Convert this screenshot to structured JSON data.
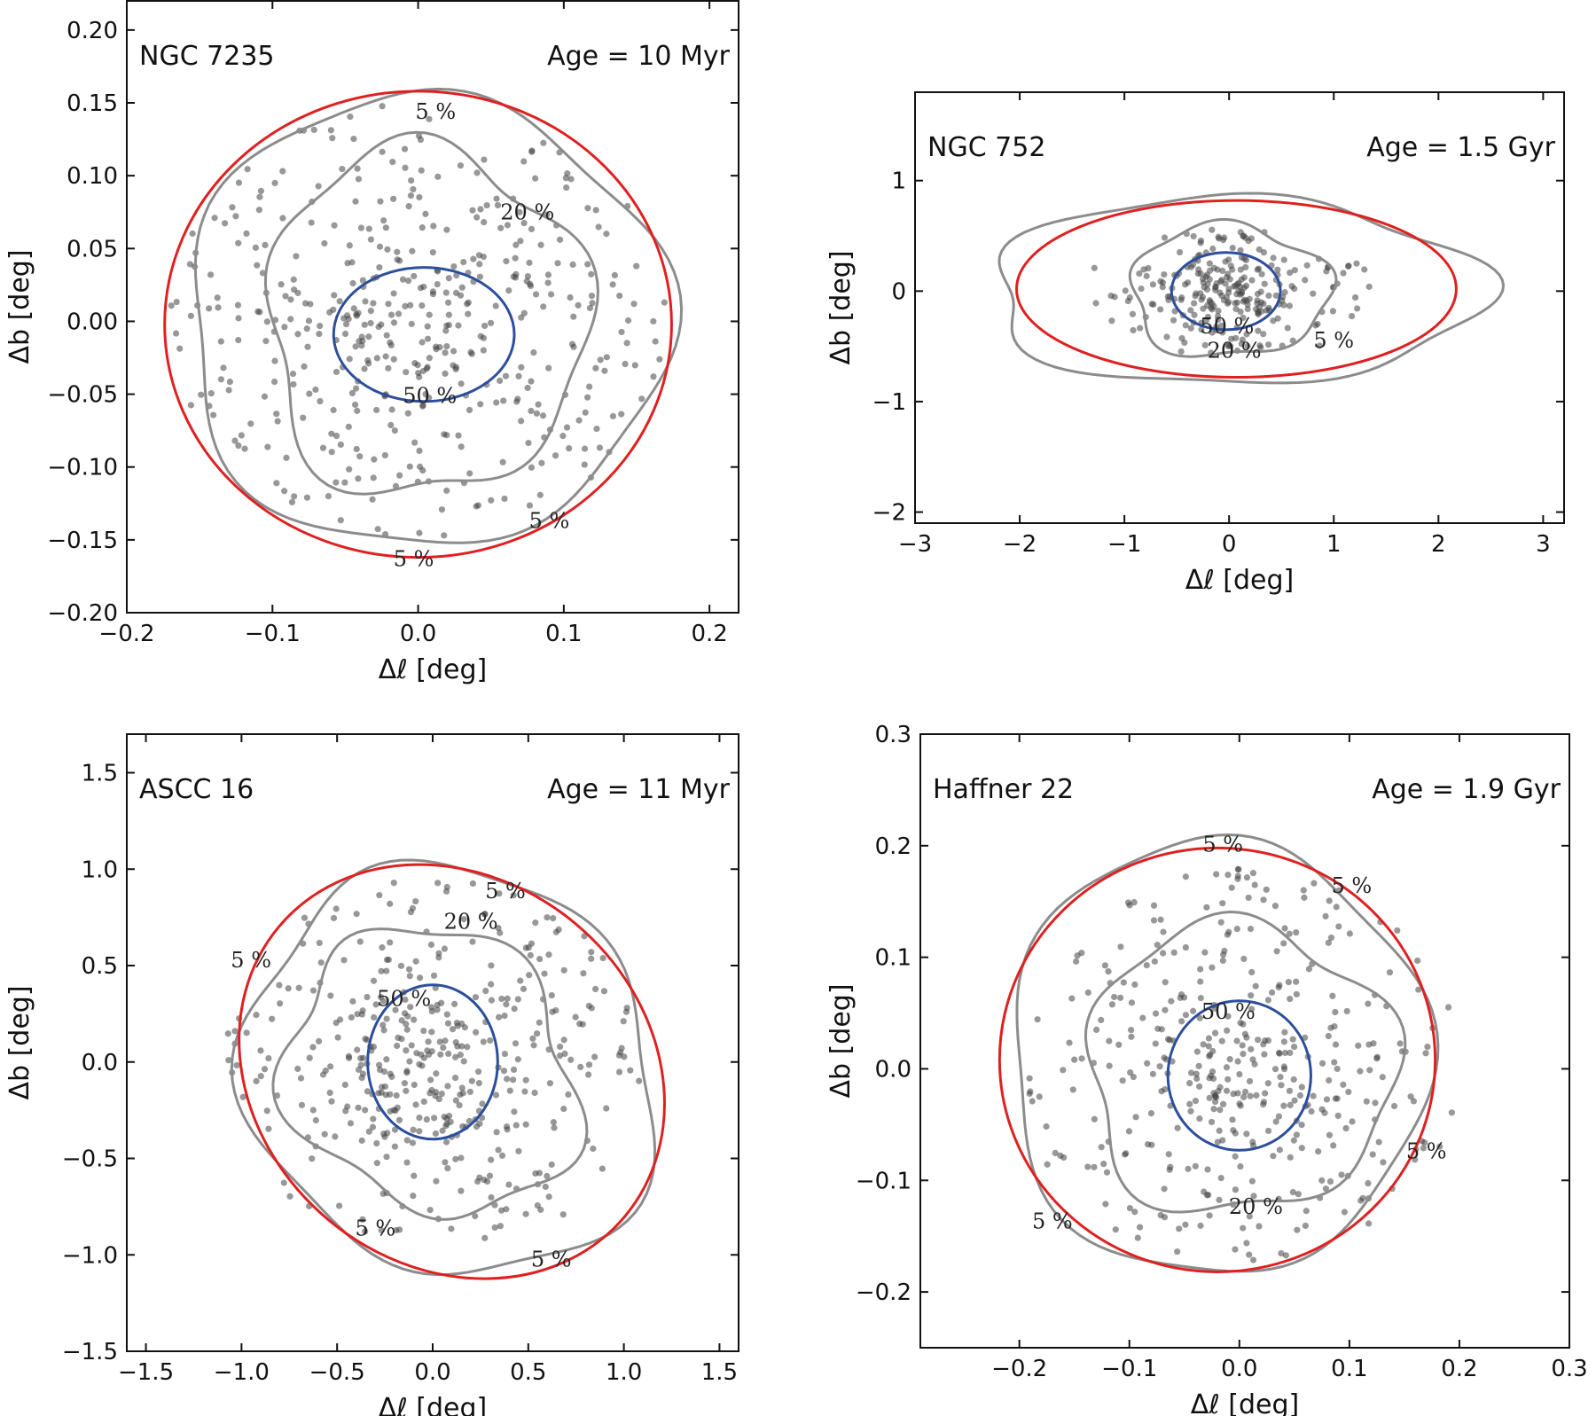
{
  "chart_data": [
    {
      "type": "scatter",
      "title": "NGC 7235",
      "age_label": "Age = 10 Myr",
      "xlabel": "Δℓ [deg]",
      "ylabel": "Δb [deg]",
      "xlim": [
        -0.2,
        0.22
      ],
      "ylim": [
        -0.2,
        0.22
      ],
      "xticks": [
        -0.2,
        -0.1,
        0.0,
        0.1,
        0.2
      ],
      "xtick_labels": [
        "−0.2",
        "−0.1",
        "0.0",
        "0.1",
        "0.2"
      ],
      "yticks": [
        -0.2,
        -0.15,
        -0.1,
        -0.05,
        0.0,
        0.05,
        0.1,
        0.15,
        0.2
      ],
      "ytick_labels": [
        "−0.20",
        "−0.15",
        "−0.10",
        "−0.05",
        "0.00",
        "0.05",
        "0.10",
        "0.15",
        "0.20"
      ],
      "scatter": {
        "n": 460,
        "seed": 11,
        "center": [
          0.0,
          0.0
        ],
        "core": [
          0.045,
          0.035
        ],
        "halo": [
          0.17,
          0.15
        ],
        "core_frac": 0.35
      },
      "ellipses": [
        {
          "name": "fit-red",
          "color": "#e02020",
          "cx": 0.0,
          "cy": -0.002,
          "rx": 0.174,
          "ry": 0.16
        },
        {
          "name": "core-blue",
          "color": "#2d4e9c",
          "cx": 0.004,
          "cy": -0.009,
          "rx": 0.062,
          "ry": 0.046
        }
      ],
      "contours": [
        {
          "level": "20 %",
          "cx": 0.005,
          "cy": 0.0,
          "rx": 0.11,
          "ry": 0.12,
          "wobble": 0.12
        },
        {
          "level": "5 %",
          "cx": 0.005,
          "cy": 0.0,
          "rx": 0.165,
          "ry": 0.155,
          "wobble": 0.07
        }
      ],
      "contour_labels": [
        {
          "text": "5 %",
          "x": 0.012,
          "y": 0.143
        },
        {
          "text": "20 %",
          "x": 0.075,
          "y": 0.074
        },
        {
          "text": "50 %",
          "x": 0.008,
          "y": -0.052
        },
        {
          "text": "5 %",
          "x": 0.09,
          "y": -0.138
        },
        {
          "text": "5 %",
          "x": -0.003,
          "y": -0.164
        }
      ]
    },
    {
      "type": "scatter",
      "title": "NGC 752",
      "age_label": "Age = 1.5 Gyr",
      "xlabel": "Δℓ [deg]",
      "ylabel": "Δb [deg]",
      "xlim": [
        -3.0,
        3.2
      ],
      "ylim": [
        -2.1,
        1.8
      ],
      "xticks": [
        -3,
        -2,
        -1,
        0,
        1,
        2,
        3
      ],
      "xtick_labels": [
        "−3",
        "−2",
        "−1",
        "0",
        "1",
        "2",
        "3"
      ],
      "yticks": [
        -2,
        -1,
        0,
        1
      ],
      "ytick_labels": [
        "−2",
        "−1",
        "0",
        "1"
      ],
      "scatter": {
        "n": 260,
        "seed": 23,
        "center": [
          0.0,
          0.0
        ],
        "core": [
          0.35,
          0.22
        ],
        "halo": [
          1.4,
          0.55
        ],
        "core_frac": 0.55
      },
      "ellipses": [
        {
          "name": "fit-red",
          "color": "#e02020",
          "cx": 0.07,
          "cy": 0.02,
          "rx": 2.1,
          "ry": 0.8
        },
        {
          "name": "core-blue",
          "color": "#2d4e9c",
          "cx": -0.03,
          "cy": 0.0,
          "rx": 0.52,
          "ry": 0.35
        }
      ],
      "contours": [
        {
          "level": "20 %",
          "cx": 0.0,
          "cy": 0.0,
          "rx": 0.95,
          "ry": 0.6,
          "wobble": 0.12
        },
        {
          "level": "5 %",
          "cx": 0.05,
          "cy": 0.0,
          "rx": 2.35,
          "ry": 0.85,
          "wobble": 0.1
        }
      ],
      "contour_labels": [
        {
          "text": "50 %",
          "x": -0.02,
          "y": -0.33
        },
        {
          "text": "20 %",
          "x": 0.05,
          "y": -0.55
        },
        {
          "text": "5 %",
          "x": 1.0,
          "y": -0.46
        }
      ]
    },
    {
      "type": "scatter",
      "title": "ASCC 16",
      "age_label": "Age = 11 Myr",
      "xlabel": "Δℓ [deg]",
      "ylabel": "Δb [deg]",
      "xlim": [
        -1.6,
        1.6
      ],
      "ylim": [
        -1.5,
        1.7
      ],
      "xticks": [
        -1.5,
        -1.0,
        -0.5,
        0.0,
        0.5,
        1.0,
        1.5
      ],
      "xtick_labels": [
        "−1.5",
        "−1.0",
        "−0.5",
        "0.0",
        "0.5",
        "1.0",
        "1.5"
      ],
      "yticks": [
        -1.5,
        -1.0,
        -0.5,
        0.0,
        0.5,
        1.0,
        1.5
      ],
      "ytick_labels": [
        "−1.5",
        "−1.0",
        "−0.5",
        "0.0",
        "0.5",
        "1.0",
        "1.5"
      ],
      "scatter": {
        "n": 420,
        "seed": 37,
        "center": [
          0.0,
          0.0
        ],
        "core": [
          0.3,
          0.3
        ],
        "halo": [
          1.1,
          0.95
        ],
        "core_frac": 0.4
      },
      "ellipses": [
        {
          "name": "fit-red",
          "color": "#e02020",
          "cx": 0.1,
          "cy": -0.05,
          "rx": 1.18,
          "ry": 1.0,
          "angle": -40
        },
        {
          "name": "core-blue",
          "color": "#2d4e9c",
          "cx": 0.0,
          "cy": 0.0,
          "rx": 0.34,
          "ry": 0.4
        }
      ],
      "contours": [
        {
          "level": "20 %",
          "cx": 0.0,
          "cy": -0.05,
          "rx": 0.8,
          "ry": 0.7,
          "wobble": 0.14,
          "angle": -40
        },
        {
          "level": "5 %",
          "cx": 0.1,
          "cy": -0.05,
          "rx": 1.12,
          "ry": 1.02,
          "wobble": 0.08,
          "angle": -40
        }
      ],
      "contour_labels": [
        {
          "text": "5 %",
          "x": 0.38,
          "y": 0.88
        },
        {
          "text": "20 %",
          "x": 0.2,
          "y": 0.72
        },
        {
          "text": "5 %",
          "x": -0.95,
          "y": 0.52
        },
        {
          "text": "50 %",
          "x": -0.15,
          "y": 0.32
        },
        {
          "text": "5 %",
          "x": -0.3,
          "y": -0.87
        },
        {
          "text": "5 %",
          "x": 0.62,
          "y": -1.03
        }
      ]
    },
    {
      "type": "scatter",
      "title": "Haffner 22",
      "age_label": "Age = 1.9 Gyr",
      "xlabel": "Δℓ [deg]",
      "ylabel": "Δb [deg]",
      "xlim": [
        -0.29,
        0.3
      ],
      "ylim": [
        -0.25,
        0.3
      ],
      "xticks": [
        -0.2,
        -0.1,
        0.0,
        0.1,
        0.2,
        0.3
      ],
      "xtick_labels": [
        "−0.2",
        "−0.1",
        "0.0",
        "0.1",
        "0.2",
        "0.3"
      ],
      "yticks": [
        -0.2,
        -0.1,
        0.0,
        0.1,
        0.2,
        0.3
      ],
      "ytick_labels": [
        "−0.2",
        "−0.1",
        "0.0",
        "0.1",
        "0.2",
        "0.3"
      ],
      "scatter": {
        "n": 400,
        "seed": 53,
        "center": [
          0.0,
          0.0
        ],
        "core": [
          0.055,
          0.055
        ],
        "halo": [
          0.2,
          0.18
        ],
        "core_frac": 0.35
      },
      "ellipses": [
        {
          "name": "fit-red",
          "color": "#e02020",
          "cx": -0.02,
          "cy": 0.008,
          "rx": 0.198,
          "ry": 0.19
        },
        {
          "name": "core-blue",
          "color": "#2d4e9c",
          "cx": 0.0,
          "cy": -0.006,
          "rx": 0.065,
          "ry": 0.067
        }
      ],
      "contours": [
        {
          "level": "20 %",
          "cx": 0.0,
          "cy": 0.0,
          "rx": 0.14,
          "ry": 0.13,
          "wobble": 0.12
        },
        {
          "level": "5 %",
          "cx": -0.02,
          "cy": 0.01,
          "rx": 0.19,
          "ry": 0.195,
          "wobble": 0.06
        }
      ],
      "contour_labels": [
        {
          "text": "5 %",
          "x": -0.015,
          "y": 0.2
        },
        {
          "text": "5 %",
          "x": 0.102,
          "y": 0.163
        },
        {
          "text": "50 %",
          "x": -0.01,
          "y": 0.05
        },
        {
          "text": "5 %",
          "x": 0.17,
          "y": -0.075
        },
        {
          "text": "20 %",
          "x": 0.015,
          "y": -0.125
        },
        {
          "text": "5 %",
          "x": -0.17,
          "y": -0.138
        }
      ]
    }
  ]
}
